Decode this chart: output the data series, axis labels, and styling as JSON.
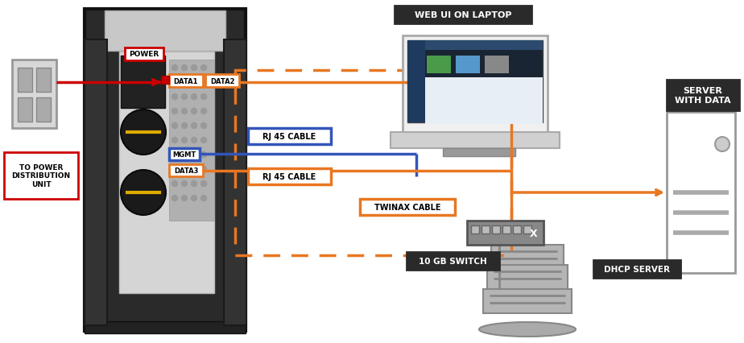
{
  "bg_color": "#ffffff",
  "orange": "#E87722",
  "orange_dash": "#E87722",
  "red": "#CC0000",
  "blue": "#3355BB",
  "dark_box": "#2a2a2a",
  "label_gray": "#333333",
  "device_outer": "#3a3a3a",
  "device_inner": "#e0e0e0",
  "device_panel": "#cccccc",
  "switch_gray": "#888888",
  "server_outline": "#888888",
  "dhcp_gray": "#aaaaaa",
  "laptop_gray": "#cccccc",
  "figsize": [
    9.24,
    4.27
  ],
  "dpi": 100,
  "labels": {
    "power": "POWER",
    "data1": "DATA1",
    "data2": "DATA2",
    "mgmt": "MGMT",
    "data3": "DATA3",
    "rj45_top": "RJ 45 CABLE",
    "rj45_bot": "RJ 45 CABLE",
    "twinax": "TWINAX CABLE",
    "web_ui": "WEB UI ON LAPTOP",
    "server": "SERVER\nWITH DATA",
    "switch": "10 GB SWITCH",
    "dhcp": "DHCP SERVER",
    "power_dist": "TO POWER\nDISTRIBUTION\nUNIT"
  }
}
